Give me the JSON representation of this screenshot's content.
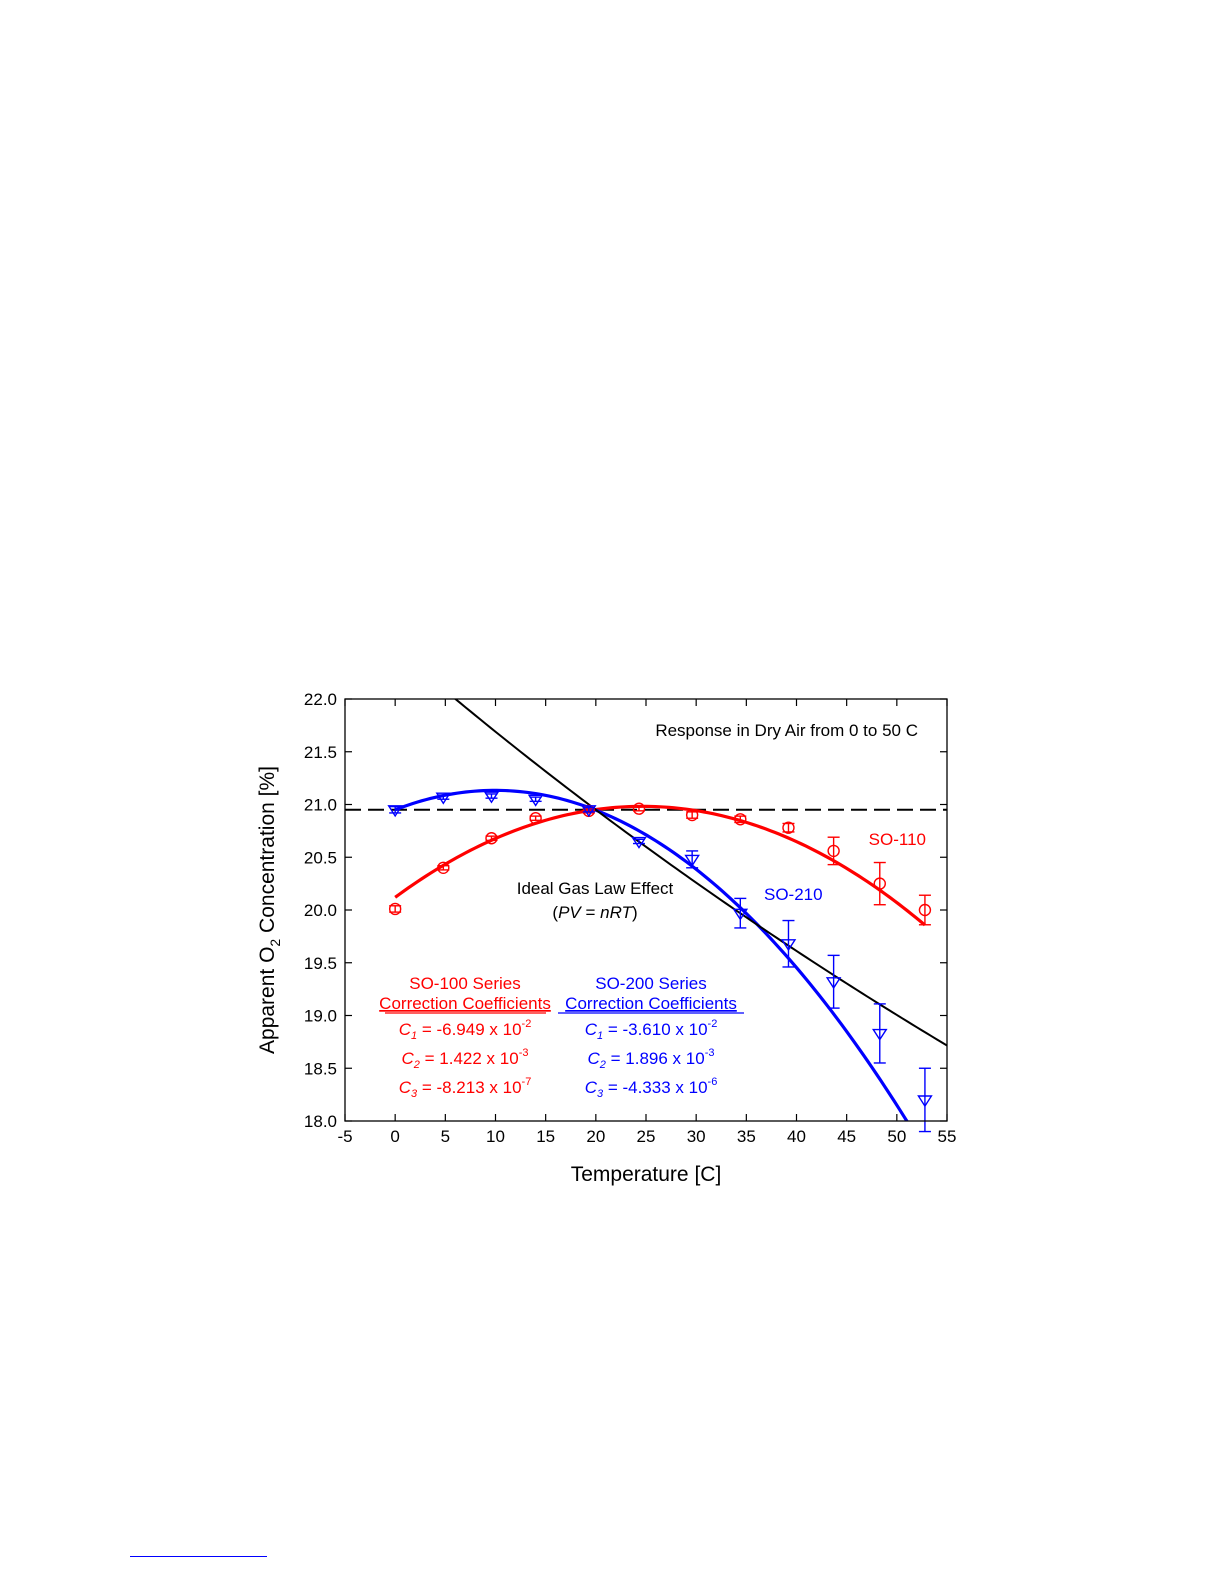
{
  "chart_data": {
    "type": "scatter",
    "title": "Response in Dry Air from 0 to 50 C",
    "xlabel": "Temperature [C]",
    "ylabel_parts": [
      "Apparent O",
      "2",
      " Concentration [%]"
    ],
    "xlim": [
      -5,
      55
    ],
    "ylim": [
      18.0,
      22.0
    ],
    "x_ticks": [
      -5,
      0,
      5,
      10,
      15,
      20,
      25,
      30,
      35,
      40,
      45,
      50,
      55
    ],
    "y_ticks": [
      18.0,
      18.5,
      19.0,
      19.5,
      20.0,
      20.5,
      21.0,
      21.5,
      22.0
    ],
    "x_tick_labels": [
      "-5",
      "0",
      "5",
      "10",
      "15",
      "20",
      "25",
      "30",
      "35",
      "40",
      "45",
      "50",
      "55"
    ],
    "y_tick_labels": [
      "18.0",
      "18.5",
      "19.0",
      "19.5",
      "20.0",
      "20.5",
      "21.0",
      "21.5",
      "22.0"
    ],
    "grid": false,
    "reference_line": {
      "y": 20.95,
      "style": "dashed",
      "color": "#000000"
    },
    "series": [
      {
        "name": "SO-110",
        "color": "#ff0000",
        "marker": "circle",
        "x": [
          0,
          4.8,
          9.6,
          14.0,
          19.3,
          24.3,
          29.6,
          34.4,
          39.2,
          43.7,
          48.3,
          52.8
        ],
        "y": [
          20.01,
          20.4,
          20.68,
          20.87,
          20.94,
          20.96,
          20.9,
          20.86,
          20.78,
          20.56,
          20.25,
          20.0
        ],
        "err": [
          0.03,
          0.02,
          0.02,
          0.02,
          0.02,
          0.02,
          0.03,
          0.03,
          0.04,
          0.13,
          0.2,
          0.14
        ],
        "fit": {
          "type": "quadratic",
          "a": 20.12,
          "b": 0.07,
          "c": -0.00142
        }
      },
      {
        "name": "SO-210",
        "color": "#0000ff",
        "marker": "triangle-down",
        "x": [
          0,
          4.8,
          9.6,
          14.0,
          19.3,
          24.3,
          29.6,
          34.4,
          39.2,
          43.7,
          48.3,
          52.8
        ],
        "y": [
          20.95,
          21.07,
          21.08,
          21.05,
          20.95,
          20.65,
          20.48,
          19.97,
          19.68,
          19.32,
          18.83,
          18.2
        ],
        "err": [
          0.03,
          0.02,
          0.02,
          0.02,
          0.02,
          0.02,
          0.08,
          0.14,
          0.22,
          0.25,
          0.28,
          0.3
        ],
        "fit": {
          "type": "quadratic",
          "a": 20.95,
          "b": 0.037,
          "c": -0.00186
        }
      },
      {
        "name": "Ideal Gas Law Effect",
        "color": "#000000",
        "marker": "none",
        "fit": {
          "type": "ideal-gas",
          "y_ref": 20.95,
          "x_ref": 20,
          "kelvin_offset": 273.15
        }
      }
    ],
    "annotations": {
      "so110_label": "SO-110",
      "so210_label": "SO-210",
      "ideal_gas_title": "Ideal Gas Law Effect",
      "ideal_gas_eq": {
        "open": "(",
        "pv": "PV",
        "equals": " = ",
        "nrt": "nRT",
        "close": ")"
      },
      "so100_coeffs": {
        "heading": "SO-100 Series",
        "subheading": "Correction Coefficients",
        "rows": [
          {
            "sym": "C",
            "sub": "1",
            "value": " = -6.949 x 10",
            "exp": "-2"
          },
          {
            "sym": "C",
            "sub": "2",
            "value": " = 1.422 x 10",
            "exp": "-3"
          },
          {
            "sym": "C",
            "sub": "3",
            "value": " = -8.213 x 10",
            "exp": "-7"
          }
        ]
      },
      "so200_coeffs": {
        "heading": "SO-200 Series",
        "subheading": "Correction Coefficients",
        "rows": [
          {
            "sym": "C",
            "sub": "1",
            "value": " = -3.610 x 10",
            "exp": "-2"
          },
          {
            "sym": "C",
            "sub": "2",
            "value": " = 1.896 x 10",
            "exp": "-3"
          },
          {
            "sym": "C",
            "sub": "3",
            "value": " = -4.333 x 10",
            "exp": "-6"
          }
        ]
      }
    }
  }
}
